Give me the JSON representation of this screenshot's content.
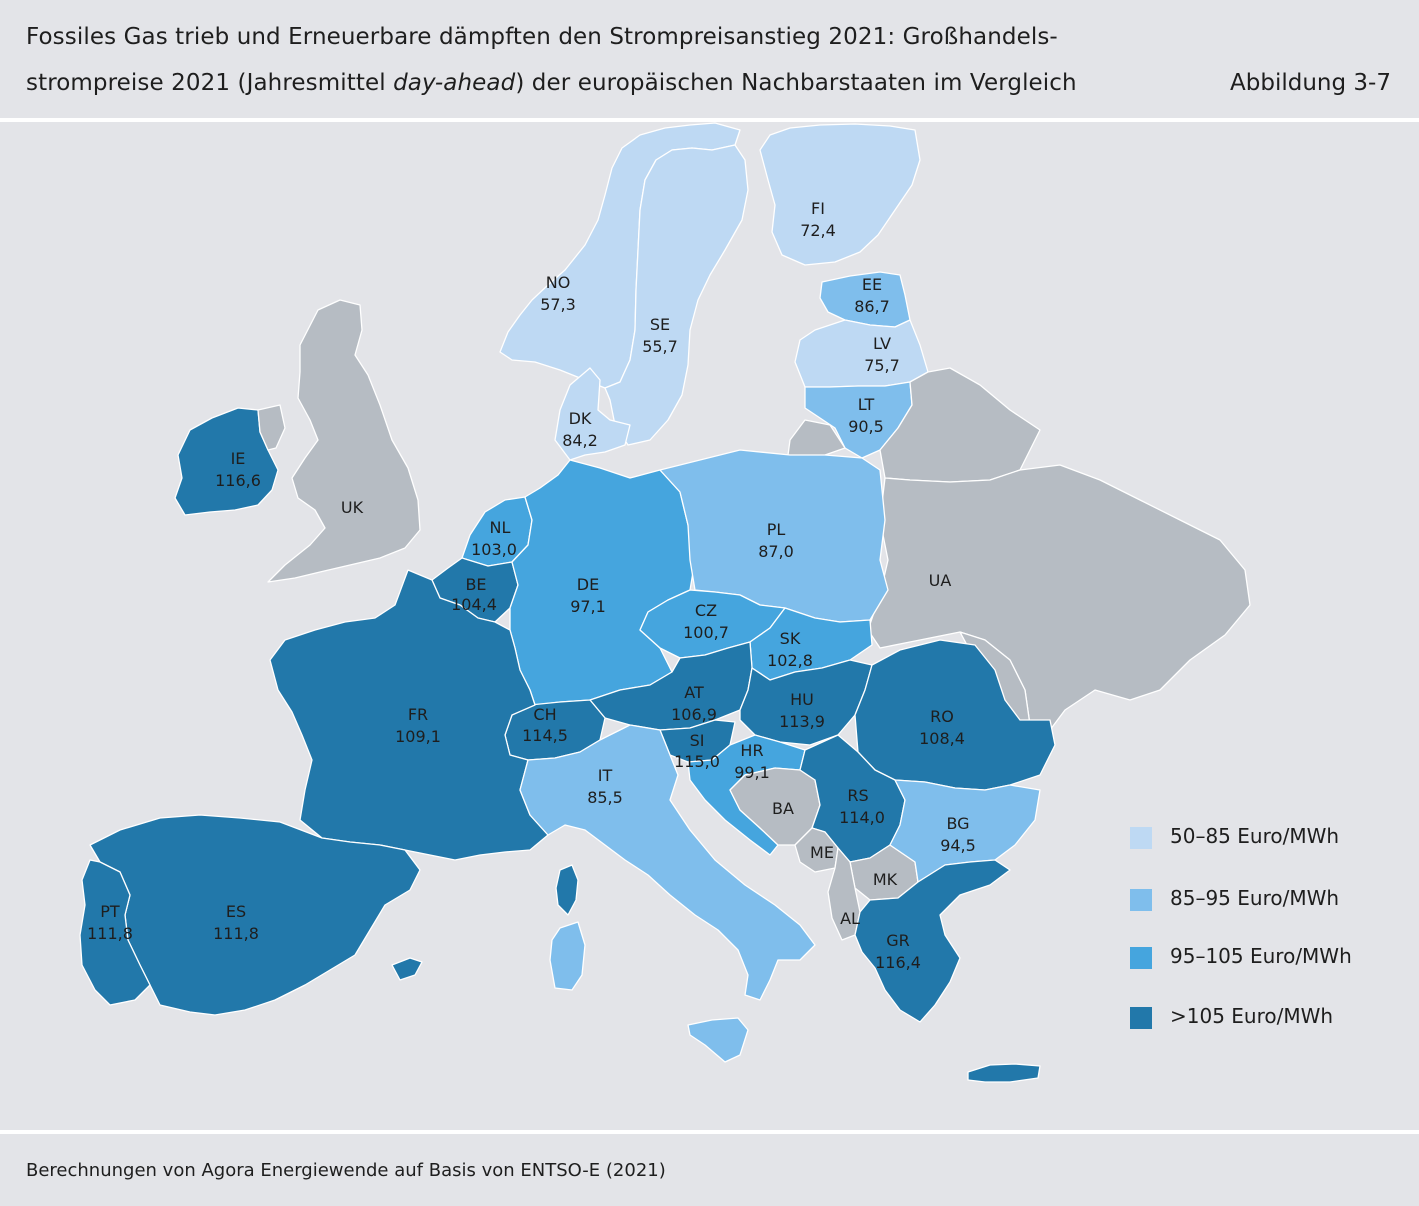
{
  "header": {
    "title_line1": "Fossiles Gas trieb und Erneuerbare dämpften den Strompreisanstieg 2021: Großhandels-",
    "title_line2_a": "strompreise 2021 (Jahresmittel ",
    "title_line2_em": "day-ahead",
    "title_line2_b": ") der europäischen Nachbarstaaten im Vergleich",
    "figure_label": "Abbildung 3-7"
  },
  "colors": {
    "background": "#e3e4e8",
    "tier_50_85": "#bed9f3",
    "tier_85_95": "#7fbeec",
    "tier_95_105": "#45a5de",
    "tier_over_105": "#2278aa",
    "no_data": "#b6bcc3"
  },
  "countries": {
    "NO": {
      "code": "NO",
      "value": "57,3"
    },
    "SE": {
      "code": "SE",
      "value": "55,7"
    },
    "FI": {
      "code": "FI",
      "value": "72,4"
    },
    "EE": {
      "code": "EE",
      "value": "86,7"
    },
    "LV": {
      "code": "LV",
      "value": "75,7"
    },
    "LT": {
      "code": "LT",
      "value": "90,5"
    },
    "DK": {
      "code": "DK",
      "value": "84,2"
    },
    "IE": {
      "code": "IE",
      "value": "116,6"
    },
    "UK": {
      "code": "UK"
    },
    "NL": {
      "code": "NL",
      "value": "103,0"
    },
    "BE": {
      "code": "BE",
      "value": "104,4"
    },
    "DE": {
      "code": "DE",
      "value": "97,1"
    },
    "PL": {
      "code": "PL",
      "value": "87,0"
    },
    "UA": {
      "code": "UA"
    },
    "CZ": {
      "code": "CZ",
      "value": "100,7"
    },
    "SK": {
      "code": "SK",
      "value": "102,8"
    },
    "FR": {
      "code": "FR",
      "value": "109,1"
    },
    "AT": {
      "code": "AT",
      "value": "106,9"
    },
    "HU": {
      "code": "HU",
      "value": "113,9"
    },
    "RO": {
      "code": "RO",
      "value": "108,4"
    },
    "CH": {
      "code": "CH",
      "value": "114,5"
    },
    "SI": {
      "code": "SI",
      "value": "115,0"
    },
    "HR": {
      "code": "HR",
      "value": "99,1"
    },
    "IT": {
      "code": "IT",
      "value": "85,5"
    },
    "BA": {
      "code": "BA"
    },
    "RS": {
      "code": "RS",
      "value": "114,0"
    },
    "BG": {
      "code": "BG",
      "value": "94,5"
    },
    "ME": {
      "code": "ME"
    },
    "MK": {
      "code": "MK"
    },
    "AL": {
      "code": "AL"
    },
    "GR": {
      "code": "GR",
      "value": "116,4"
    },
    "PT": {
      "code": "PT",
      "value": "111,8"
    },
    "ES": {
      "code": "ES",
      "value": "111,8"
    }
  },
  "legend": [
    {
      "label": "50–85 Euro/MWh",
      "color": "#bed9f3"
    },
    {
      "label": "85–95 Euro/MWh",
      "color": "#7fbeec"
    },
    {
      "label": "95–105 Euro/MWh",
      "color": "#45a5de"
    },
    {
      "label": ">105 Euro/MWh",
      "color": "#2278aa"
    }
  ],
  "footer": {
    "source": "Berechnungen von Agora Energiewende auf Basis von ENTSO-E (2021)"
  }
}
